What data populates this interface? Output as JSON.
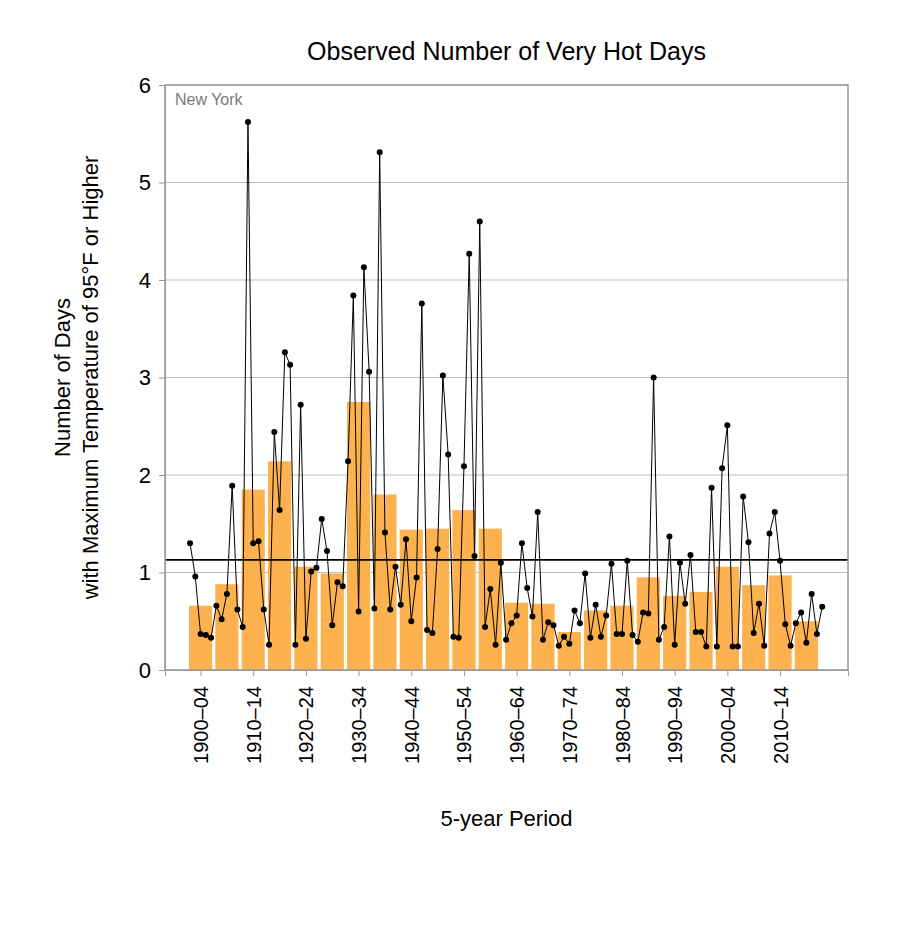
{
  "chart_data": {
    "type": "bar",
    "title": "Observed Number of Very Hot Days",
    "annotation": "New York",
    "x_label": "5-year Period",
    "y_label": [
      "Number of Days",
      "with Maximum Temperature of 95°F or Higher"
    ],
    "xlim": [
      1895.25,
      2024.9
    ],
    "xticks": [
      {
        "value": 1902,
        "label": "1900–04"
      },
      {
        "value": 1912,
        "label": "1910–14"
      },
      {
        "value": 1922,
        "label": "1920–24"
      },
      {
        "value": 1932,
        "label": "1930–34"
      },
      {
        "value": 1942,
        "label": "1940–44"
      },
      {
        "value": 1952,
        "label": "1950–54"
      },
      {
        "value": 1962,
        "label": "1960–64"
      },
      {
        "value": 1972,
        "label": "1970–74"
      },
      {
        "value": 1982,
        "label": "1980–84"
      },
      {
        "value": 1992,
        "label": "1990–94"
      },
      {
        "value": 2002,
        "label": "2000–04"
      },
      {
        "value": 2012,
        "label": "2010–14"
      }
    ],
    "ylim": [
      0,
      6
    ],
    "yticks": [
      0,
      1,
      2,
      3,
      4,
      5,
      6
    ],
    "grid": true,
    "reference_line": 1.13,
    "series": [
      {
        "type": "bar",
        "color": "#fdb24f",
        "x": [
          1902,
          1907,
          1912,
          1917,
          1922,
          1927,
          1932,
          1937,
          1942,
          1947,
          1952,
          1957,
          1962,
          1967,
          1972,
          1977,
          1982,
          1987,
          1992,
          1997,
          2002,
          2007,
          2012,
          2017
        ],
        "values": [
          0.66,
          0.88,
          1.85,
          2.14,
          1.06,
          0.99,
          2.75,
          1.8,
          1.44,
          1.45,
          1.64,
          1.45,
          0.69,
          0.68,
          0.39,
          0.61,
          0.66,
          0.95,
          0.76,
          0.8,
          1.06,
          0.87,
          0.97,
          0.5
        ]
      },
      {
        "type": "line",
        "color": "#000000",
        "marker": "circle",
        "x": [
          1900,
          1901,
          1902,
          1903,
          1904,
          1905,
          1906,
          1907,
          1908,
          1909,
          1910,
          1911,
          1912,
          1913,
          1914,
          1915,
          1916,
          1917,
          1918,
          1919,
          1920,
          1921,
          1922,
          1923,
          1924,
          1925,
          1926,
          1927,
          1928,
          1929,
          1930,
          1931,
          1932,
          1933,
          1934,
          1935,
          1936,
          1937,
          1938,
          1939,
          1940,
          1941,
          1942,
          1943,
          1944,
          1945,
          1946,
          1947,
          1948,
          1949,
          1950,
          1951,
          1952,
          1953,
          1954,
          1955,
          1956,
          1957,
          1958,
          1959,
          1960,
          1961,
          1962,
          1963,
          1964,
          1965,
          1966,
          1967,
          1968,
          1969,
          1970,
          1971,
          1972,
          1973,
          1974,
          1975,
          1976,
          1977,
          1978,
          1979,
          1980,
          1981,
          1982,
          1983,
          1984,
          1985,
          1986,
          1987,
          1988,
          1989,
          1990,
          1991,
          1992,
          1993,
          1994,
          1995,
          1996,
          1997,
          1998,
          1999,
          2000,
          2001,
          2002,
          2003,
          2004,
          2005,
          2006,
          2007,
          2008,
          2009,
          2010,
          2011,
          2012,
          2013,
          2014,
          2015,
          2016,
          2017,
          2018,
          2019,
          2020
        ],
        "values": [
          1.3,
          0.96,
          0.37,
          0.36,
          0.33,
          0.66,
          0.52,
          0.78,
          1.89,
          0.62,
          0.44,
          5.62,
          1.3,
          1.32,
          0.62,
          0.26,
          2.44,
          1.64,
          3.26,
          3.13,
          0.26,
          2.72,
          0.32,
          1.01,
          1.05,
          1.55,
          1.22,
          0.46,
          0.9,
          0.86,
          2.14,
          3.84,
          0.6,
          4.13,
          3.06,
          0.63,
          5.31,
          1.41,
          0.62,
          1.06,
          0.67,
          1.34,
          0.5,
          0.95,
          3.76,
          0.41,
          0.38,
          1.24,
          3.02,
          2.21,
          0.34,
          0.33,
          2.09,
          4.27,
          1.17,
          4.6,
          0.44,
          0.83,
          0.26,
          1.1,
          0.31,
          0.48,
          0.56,
          1.3,
          0.84,
          0.55,
          1.62,
          0.31,
          0.49,
          0.46,
          0.25,
          0.34,
          0.27,
          0.61,
          0.48,
          0.99,
          0.33,
          0.67,
          0.34,
          0.56,
          1.09,
          0.37,
          0.37,
          1.12,
          0.36,
          0.29,
          0.59,
          0.58,
          3.0,
          0.31,
          0.44,
          1.37,
          0.26,
          1.1,
          0.68,
          1.18,
          0.39,
          0.39,
          0.24,
          1.87,
          0.24,
          2.07,
          2.51,
          0.24,
          0.24,
          1.78,
          1.31,
          0.38,
          0.68,
          0.25,
          1.4,
          1.62,
          1.12,
          0.47,
          0.25,
          0.48,
          0.59,
          0.28,
          0.78,
          0.37,
          0.65
        ]
      }
    ]
  }
}
